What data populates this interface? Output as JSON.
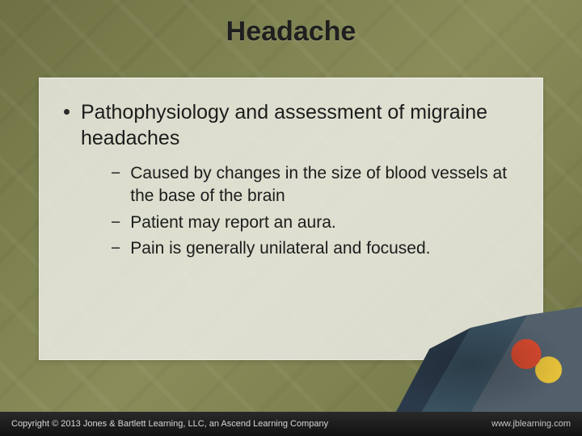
{
  "colors": {
    "background_olive": "#8a8d5a",
    "panel_bg": "rgba(244,244,238,0.80)",
    "text": "#1c1c1c",
    "footer_bg": "#1a1a1a",
    "footer_text": "#d6d6d6"
  },
  "title": "Headache",
  "title_fontsize": 34,
  "bullets": [
    {
      "text": "Pathophysiology and assessment of migraine headaches",
      "fontsize": 25,
      "sub": [
        "Caused by changes in the size of blood vessels at the base of the brain",
        "Patient may report an aura.",
        "Pain is generally unilateral and focused."
      ],
      "sub_fontsize": 21
    }
  ],
  "footer": {
    "copyright": "Copyright © 2013 Jones & Bartlett Learning, LLC, an Ascend Learning Company",
    "url": "www.jblearning.com"
  }
}
